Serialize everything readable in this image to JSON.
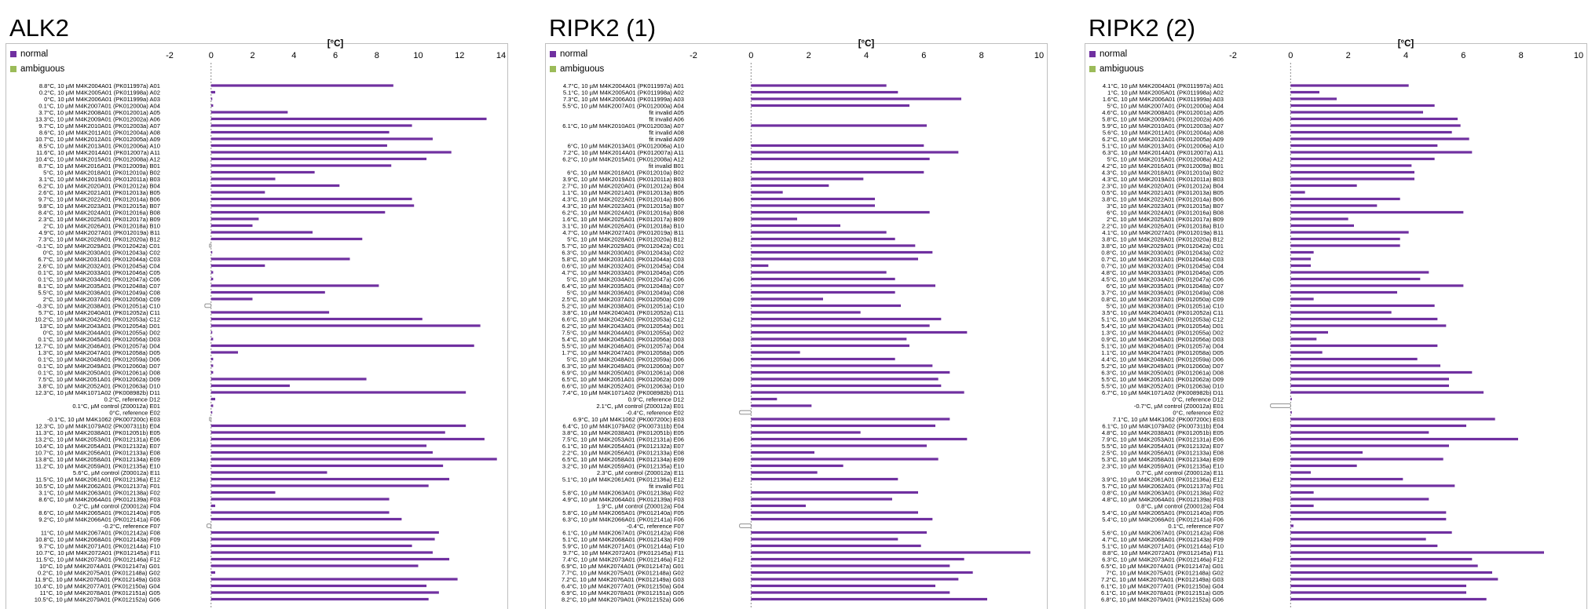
{
  "panels": [
    {
      "title": "ALK2"
    },
    {
      "title": "RIPK2 (1)"
    },
    {
      "title": "RIPK2 (2)"
    }
  ],
  "legend": [
    {
      "label": "normal",
      "color": "#7030a0"
    },
    {
      "label": "ambiguous",
      "color": "#9bbb59"
    }
  ],
  "chart_data": [
    {
      "type": "bar",
      "orientation": "horizontal",
      "xlabel": "[°C]",
      "xlim": [
        -2,
        14
      ],
      "ticks": [
        -2,
        0,
        2,
        4,
        6,
        8,
        10,
        12,
        14
      ],
      "categories": [
        "8.8°C, 10 µM M4K2004A01 (PK011997a) A01",
        "0.2°C, 10 µM M4K2005A01 (PK011998a) A02",
        "0°C, 10 µM M4K2006A01 (PK011999a) A03",
        "0.1°C, 10 µM M4K2007A01 (PK012000a) A04",
        "3.7°C, 10 µM M4K2008A01 (PK012001a) A05",
        "13.3°C, 10 µM M4K2009A01 (PK012002a) A06",
        "9.7°C, 10 µM M4K2010A01 (PK012003a) A07",
        "8.6°C, 10 µM M4K2011A01 (PK012004a) A08",
        "10.7°C, 10 µM M4K2012A01 (PK012005a) A09",
        "8.5°C, 10 µM M4K2013A01 (PK012006a) A10",
        "11.6°C, 10 µM M4K2014A01 (PK012007a) A11",
        "10.4°C, 10 µM M4K2015A01 (PK012008a) A12",
        "8.7°C, 10 µM M4K2016A01 (PK012009a) B01",
        "5°C, 10 µM M4K2018A01 (PK012010a) B02",
        "3.1°C, 10 µM M4K2019A01 (PK012011a) B03",
        "6.2°C, 10 µM M4K2020A01 (PK012012a) B04",
        "2.6°C, 10 µM M4K2021A01 (PK012013a) B05",
        "9.7°C, 10 µM M4K2022A01 (PK012014a) B06",
        "9.8°C, 10 µM M4K2023A01 (PK012015a) B07",
        "8.4°C, 10 µM M4K2024A01 (PK012016a) B08",
        "2.3°C, 10 µM M4K2025A01 (PK012017a) B09",
        "2°C, 10 µM M4K2026A01 (PK012018a) B10",
        "4.9°C, 10 µM M4K2027A01 (PK012019a) B11",
        "7.3°C, 10 µM M4K2028A01 (PK012020a) B12",
        "-0.1°C, 10 µM M4K2029A01 (PK012042a) C01",
        "0°C, 10 µM M4K2030A01 (PK012043a) C02",
        "6.7°C, 10 µM M4K2031A01 (PK012044a) C03",
        "2.6°C, 10 µM M4K2032A01 (PK012045a) C04",
        "0.1°C, 10 µM M4K2033A01 (PK012046a) C05",
        "0.1°C, 10 µM M4K2034A01 (PK012047a) C06",
        "8.1°C, 10 µM M4K2035A01 (PK012048a) C07",
        "5.5°C, 10 µM M4K2036A01 (PK012049a) C08",
        "2°C, 10 µM M4K2037A01 (PK012050a) C09",
        "-0.3°C, 10 µM M4K2038A01 (PK012051a) C10",
        "5.7°C, 10 µM M4K2040A01 (PK012052a) C11",
        "10.2°C, 10 µM M4K2042A01 (PK012053a) C12",
        "13°C, 10 µM M4K2043A01 (PK012054a) D01",
        "0°C, 10 µM M4K2044A01 (PK012055a) D02",
        "0.1°C, 10 µM M4K2045A01 (PK012056a) D03",
        "12.7°C, 10 µM M4K2046A01 (PK012057a) D04",
        "1.3°C, 10 µM M4K2047A01 (PK012058a) D05",
        "0.1°C, 10 µM M4K2048A01 (PK012059a) D06",
        "0.1°C, 10 µM M4K2049A01 (PK012060a) D07",
        "0.1°C, 10 µM M4K2050A01 (PK012061a) D08",
        "7.5°C, 10 µM M4K2051A01 (PK012062a) D09",
        "3.8°C, 10 µM M4K2052A01 (PK012063a) D10",
        "12.3°C, 10 µM M4K1071A02 (PK008982b) D11",
        "0.2°C, reference D12",
        "0.1°C, µM control (Z00012a) E01",
        "0°C, reference E02",
        "-0.1°C, 10 µM M4K1062 (PK007200c) E03",
        "12.3°C, 10 µM M4K1079A02 (PK007311b) E04",
        "11.3°C, 10 µM M4K2038A01 (PK012051b) E05",
        "13.2°C, 10 µM M4K2053A01 (PK012131a) E06",
        "10.4°C, 10 µM M4K2054A01 (PK012132a) E07",
        "10.7°C, 10 µM M4K2056A01 (PK012133a) E08",
        "13.8°C, 10 µM M4K2058A01 (PK012134a) E09",
        "11.2°C, 10 µM M4K2059A01 (PK012135a) E10",
        "5.6°C, µM control (Z00012a) E11",
        "11.5°C, 10 µM M4K2061A01 (PK012136a) E12",
        "10.5°C, 10 µM M4K2062A01 (PK012137a) F01",
        "3.1°C, 10 µM M4K2063A01 (PK012138a) F02",
        "8.6°C, 10 µM M4K2064A01 (PK012139a) F03",
        "0.2°C, µM control (Z00012a) F04",
        "8.6°C, 10 µM M4K2065A01 (PK012140a) F05",
        "9.2°C, 10 µM M4K2066A01 (PK012141a) F06",
        "-0.2°C, reference F07",
        "11°C, 10 µM M4K2067A01 (PK012142a) F08",
        "10.8°C, 10 µM M4K2068A01 (PK012143a) F09",
        "9.7°C, 10 µM M4K2071A01 (PK012144a) F10",
        "10.7°C, 10 µM M4K2072A01 (PK012145a) F11",
        "11.5°C, 10 µM M4K2073A01 (PK012146a) F12",
        "10°C, 10 µM M4K2074A01 (PK012147a) G01",
        "0.2°C, 10 µM M4K2075A01 (PK012148a) G02",
        "11.9°C, 10 µM M4K2076A01 (PK012149a) G03",
        "10.4°C, 10 µM M4K2077A01 (PK012150a) G04",
        "11°C, 10 µM M4K2078A01 (PK012151a) G05",
        "10.5°C, 10 µM M4K2079A01 (PK012152a) G06"
      ],
      "values": [
        8.8,
        0.2,
        0,
        0.1,
        3.7,
        13.3,
        9.7,
        8.6,
        10.7,
        8.5,
        11.6,
        10.4,
        8.7,
        5,
        3.1,
        6.2,
        2.6,
        9.7,
        9.8,
        8.4,
        2.3,
        2,
        4.9,
        7.3,
        -0.1,
        0,
        6.7,
        2.6,
        0.1,
        0.1,
        8.1,
        5.5,
        2,
        -0.3,
        5.7,
        10.2,
        13,
        0,
        0.1,
        12.7,
        1.3,
        0.1,
        0.1,
        0.1,
        7.5,
        3.8,
        12.3,
        0.2,
        0.1,
        0,
        -0.1,
        12.3,
        11.3,
        13.2,
        10.4,
        10.7,
        13.8,
        11.2,
        5.6,
        11.5,
        10.5,
        3.1,
        8.6,
        0.2,
        8.6,
        9.2,
        -0.2,
        11,
        10.8,
        9.7,
        10.7,
        11.5,
        10,
        0.2,
        11.9,
        10.4,
        11,
        10.5
      ],
      "grid": false
    },
    {
      "type": "bar",
      "orientation": "horizontal",
      "xlabel": "[°C]",
      "xlim": [
        -2,
        10
      ],
      "ticks": [
        -2,
        0,
        2,
        4,
        6,
        8,
        10
      ],
      "categories": [
        "4.7°C, 10 µM M4K2004A01 (PK011997a) A01",
        "5.1°C, 10 µM M4K2005A01 (PK011998a) A02",
        "7.3°C, 10 µM M4K2006A01 (PK011999a) A03",
        "5.5°C, 10 µM M4K2007A01 (PK012000a) A04",
        "fit invalid A05",
        "fit invalid A06",
        "6.1°C, 10 µM M4K2010A01 (PK012003a) A07",
        "fit invalid A08",
        "fit invalid A09",
        "6°C, 10 µM M4K2013A01 (PK012006a) A10",
        "7.2°C, 10 µM M4K2014A01 (PK012007a) A11",
        "6.2°C, 10 µM M4K2015A01 (PK012008a) A12",
        "fit invalid B01",
        "6°C, 10 µM M4K2018A01 (PK012010a) B02",
        "3.9°C, 10 µM M4K2019A01 (PK012011a) B03",
        "2.7°C, 10 µM M4K2020A01 (PK012012a) B04",
        "1.1°C, 10 µM M4K2021A01 (PK012013a) B05",
        "4.3°C, 10 µM M4K2022A01 (PK012014a) B06",
        "4.3°C, 10 µM M4K2023A01 (PK012015a) B07",
        "6.2°C, 10 µM M4K2024A01 (PK012016a) B08",
        "1.6°C, 10 µM M4K2025A01 (PK012017a) B09",
        "3.1°C, 10 µM M4K2026A01 (PK012018a) B10",
        "4.7°C, 10 µM M4K2027A01 (PK012019a) B11",
        "5°C, 10 µM M4K2028A01 (PK012020a) B12",
        "5.7°C, 10 µM M4K2029A01 (PK012042a) C01",
        "6.3°C, 10 µM M4K2030A01 (PK012043a) C02",
        "5.8°C, 10 µM M4K2031A01 (PK012044a) C03",
        "0.6°C, 10 µM M4K2032A01 (PK012045a) C04",
        "4.7°C, 10 µM M4K2033A01 (PK012046a) C05",
        "5°C, 10 µM M4K2034A01 (PK012047a) C06",
        "6.4°C, 10 µM M4K2035A01 (PK012048a) C07",
        "5°C, 10 µM M4K2036A01 (PK012049a) C08",
        "2.5°C, 10 µM M4K2037A01 (PK012050a) C09",
        "5.2°C, 10 µM M4K2038A01 (PK012051a) C10",
        "3.8°C, 10 µM M4K2040A01 (PK012052a) C11",
        "6.6°C, 10 µM M4K2042A01 (PK012053a) C12",
        "6.2°C, 10 µM M4K2043A01 (PK012054a) D01",
        "7.5°C, 10 µM M4K2044A01 (PK012055a) D02",
        "5.4°C, 10 µM M4K2045A01 (PK012056a) D03",
        "5.5°C, 10 µM M4K2046A01 (PK012057a) D04",
        "1.7°C, 10 µM M4K2047A01 (PK012058a) D05",
        "5°C, 10 µM M4K2048A01 (PK012059a) D06",
        "6.3°C, 10 µM M4K2049A01 (PK012060a) D07",
        "6.9°C, 10 µM M4K2050A01 (PK012061a) D08",
        "6.5°C, 10 µM M4K2051A01 (PK012062a) D09",
        "6.6°C, 10 µM M4K2052A01 (PK012063a) D10",
        "7.4°C, 10 µM M4K1071A02 (PK008982b) D11",
        "0.9°C, reference D12",
        "2.1°C, µM control (Z00012a) E01",
        "-0.4°C, reference E02",
        "6.9°C, 10 µM M4K1062 (PK007200c) E03",
        "6.4°C, 10 µM M4K1079A02 (PK007311b) E04",
        "3.8°C, 10 µM M4K2038A01 (PK012051b) E05",
        "7.5°C, 10 µM M4K2053A01 (PK012131a) E06",
        "6.1°C, 10 µM M4K2054A01 (PK012132a) E07",
        "2.2°C, 10 µM M4K2056A01 (PK012133a) E08",
        "6.5°C, 10 µM M4K2058A01 (PK012134a) E09",
        "3.2°C, 10 µM M4K2059A01 (PK012135a) E10",
        "2.3°C, µM control (Z00012a) E11",
        "5.1°C, 10 µM M4K2061A01 (PK012136a) E12",
        "fit invalid F01",
        "5.8°C, 10 µM M4K2063A01 (PK012138a) F02",
        "4.9°C, 10 µM M4K2064A01 (PK012139a) F03",
        "1.9°C, µM control (Z00012a) F04",
        "5.8°C, 10 µM M4K2065A01 (PK012140a) F05",
        "6.3°C, 10 µM M4K2066A01 (PK012141a) F06",
        "-0.4°C, reference F07",
        "6.1°C, 10 µM M4K2067A01 (PK012142a) F08",
        "5.1°C, 10 µM M4K2068A01 (PK012143a) F09",
        "5.9°C, 10 µM M4K2071A01 (PK012144a) F10",
        "9.7°C, 10 µM M4K2072A01 (PK012145a) F11",
        "7.4°C, 10 µM M4K2073A01 (PK012146a) F12",
        "6.9°C, 10 µM M4K2074A01 (PK012147a) G01",
        "7.7°C, 10 µM M4K2075A01 (PK012148a) G02",
        "7.2°C, 10 µM M4K2076A01 (PK012149a) G03",
        "6.4°C, 10 µM M4K2077A01 (PK012150a) G04",
        "6.9°C, 10 µM M4K2078A01 (PK012151a) G05",
        "8.2°C, 10 µM M4K2079A01 (PK012152a) G06"
      ],
      "values": [
        4.7,
        5.1,
        7.3,
        5.5,
        null,
        null,
        6.1,
        null,
        null,
        6,
        7.2,
        6.2,
        null,
        6,
        3.9,
        2.7,
        1.1,
        4.3,
        4.3,
        6.2,
        1.6,
        3.1,
        4.7,
        5,
        5.7,
        6.3,
        5.8,
        0.6,
        4.7,
        5,
        6.4,
        5,
        2.5,
        5.2,
        3.8,
        6.6,
        6.2,
        7.5,
        5.4,
        5.5,
        1.7,
        5,
        6.3,
        6.9,
        6.5,
        6.6,
        7.4,
        0.9,
        2.1,
        -0.4,
        6.9,
        6.4,
        3.8,
        7.5,
        6.1,
        2.2,
        6.5,
        3.2,
        2.3,
        5.1,
        null,
        5.8,
        4.9,
        1.9,
        5.8,
        6.3,
        -0.4,
        6.1,
        5.1,
        5.9,
        9.7,
        7.4,
        6.9,
        7.7,
        7.2,
        6.4,
        6.9,
        8.2
      ],
      "grid": false
    },
    {
      "type": "bar",
      "orientation": "horizontal",
      "xlabel": "[°C]",
      "xlim": [
        -2,
        10
      ],
      "ticks": [
        -2,
        0,
        2,
        4,
        6,
        8,
        10
      ],
      "categories": [
        "4.1°C, 10 µM M4K2004A01 (PK011997a) A01",
        "1°C, 10 µM M4K2005A01 (PK011998a) A02",
        "1.6°C, 10 µM M4K2006A01 (PK011999a) A03",
        "5°C, 10 µM M4K2007A01 (PK012000a) A04",
        "4.6°C, 10 µM M4K2008A01 (PK012001a) A05",
        "5.8°C, 10 µM M4K2009A01 (PK012002a) A06",
        "5.9°C, 10 µM M4K2010A01 (PK012003a) A07",
        "5.6°C, 10 µM M4K2011A01 (PK012004a) A08",
        "6.2°C, 10 µM M4K2012A01 (PK012005a) A09",
        "5.1°C, 10 µM M4K2013A01 (PK012006a) A10",
        "6.3°C, 10 µM M4K2014A01 (PK012007a) A11",
        "5°C, 10 µM M4K2015A01 (PK012008a) A12",
        "4.2°C, 10 µM M4K2016A01 (PK012009a) B01",
        "4.3°C, 10 µM M4K2018A01 (PK012010a) B02",
        "4.3°C, 10 µM M4K2019A01 (PK012011a) B03",
        "2.3°C, 10 µM M4K2020A01 (PK012012a) B04",
        "0.5°C, 10 µM M4K2021A01 (PK012013a) B05",
        "3.8°C, 10 µM M4K2022A01 (PK012014a) B06",
        "3°C, 10 µM M4K2023A01 (PK012015a) B07",
        "6°C, 10 µM M4K2024A01 (PK012016a) B08",
        "2°C, 10 µM M4K2025A01 (PK012017a) B09",
        "2.2°C, 10 µM M4K2026A01 (PK012018a) B10",
        "4.1°C, 10 µM M4K2027A01 (PK012019a) B11",
        "3.8°C, 10 µM M4K2028A01 (PK012020a) B12",
        "3.8°C, 10 µM M4K2029A01 (PK012042a) C01",
        "0.8°C, 10 µM M4K2030A01 (PK012043a) C02",
        "0.7°C, 10 µM M4K2031A01 (PK012044a) C03",
        "0.7°C, 10 µM M4K2032A01 (PK012045a) C04",
        "4.8°C, 10 µM M4K2033A01 (PK012046a) C05",
        "4.5°C, 10 µM M4K2034A01 (PK012047a) C06",
        "6°C, 10 µM M4K2035A01 (PK012048a) C07",
        "3.7°C, 10 µM M4K2036A01 (PK012049a) C08",
        "0.8°C, 10 µM M4K2037A01 (PK012050a) C09",
        "5°C, 10 µM M4K2038A01 (PK012051a) C10",
        "3.5°C, 10 µM M4K2040A01 (PK012052a) C11",
        "5.1°C, 10 µM M4K2042A01 (PK012053a) C12",
        "5.4°C, 10 µM M4K2043A01 (PK012054a) D01",
        "1.3°C, 10 µM M4K2044A01 (PK012055a) D02",
        "0.9°C, 10 µM M4K2045A01 (PK012056a) D03",
        "5.1°C, 10 µM M4K2046A01 (PK012057a) D04",
        "1.1°C, 10 µM M4K2047A01 (PK012058a) D05",
        "4.4°C, 10 µM M4K2048A01 (PK012059a) D06",
        "5.2°C, 10 µM M4K2049A01 (PK012060a) D07",
        "6.3°C, 10 µM M4K2050A01 (PK012061a) D08",
        "5.5°C, 10 µM M4K2051A01 (PK012062a) D09",
        "5.5°C, 10 µM M4K2052A01 (PK012063a) D10",
        "6.7°C, 10 µM M4K1071A02 (PK008982b) D11",
        "0°C, reference D12",
        "-0.7°C, µM control (Z00012a) E01",
        "0°C, reference E02",
        "7.1°C, 10 µM M4K1062 (PK007200c) E03",
        "6.1°C, 10 µM M4K1079A02 (PK007311b) E04",
        "4.8°C, 10 µM M4K2038A01 (PK012051b) E05",
        "7.9°C, 10 µM M4K2053A01 (PK012131a) E06",
        "5.5°C, 10 µM M4K2054A01 (PK012132a) E07",
        "2.5°C, 10 µM M4K2056A01 (PK012133a) E08",
        "5.3°C, 10 µM M4K2058A01 (PK012134a) E09",
        "2.3°C, 10 µM M4K2059A01 (PK012135a) E10",
        "0.7°C, µM control (Z00012a) E11",
        "3.9°C, 10 µM M4K2061A01 (PK012136a) E12",
        "5.7°C, 10 µM M4K2062A01 (PK012137a) F01",
        "0.8°C, 10 µM M4K2063A01 (PK012138a) F02",
        "4.8°C, 10 µM M4K2064A01 (PK012139a) F03",
        "0.8°C, µM control (Z00012a) F04",
        "5.4°C, 10 µM M4K2065A01 (PK012140a) F05",
        "5.4°C, 10 µM M4K2066A01 (PK012141a) F06",
        "0.1°C, reference F07",
        "5.6°C, 10 µM M4K2067A01 (PK012142a) F08",
        "4.7°C, 10 µM M4K2068A01 (PK012143a) F09",
        "5.1°C, 10 µM M4K2071A01 (PK012144a) F10",
        "8.8°C, 10 µM M4K2072A01 (PK012145a) F11",
        "6.3°C, 10 µM M4K2073A01 (PK012146a) F12",
        "6.5°C, 10 µM M4K2074A01 (PK012147a) G01",
        "7°C, 10 µM M4K2075A01 (PK012148a) G02",
        "7.2°C, 10 µM M4K2076A01 (PK012149a) G03",
        "6.1°C, 10 µM M4K2077A01 (PK012150a) G04",
        "6.1°C, 10 µM M4K2078A01 (PK012151a) G05",
        "6.8°C, 10 µM M4K2079A01 (PK012152a) G06"
      ],
      "values": [
        4.1,
        1,
        1.6,
        5,
        4.6,
        5.8,
        5.9,
        5.6,
        6.2,
        5.1,
        6.3,
        5,
        4.2,
        4.3,
        4.3,
        2.3,
        0.5,
        3.8,
        3,
        6,
        2,
        2.2,
        4.1,
        3.8,
        3.8,
        0.8,
        0.7,
        0.7,
        4.8,
        4.5,
        6,
        3.7,
        0.8,
        5,
        3.5,
        5.1,
        5.4,
        1.3,
        0.9,
        5.1,
        1.1,
        4.4,
        5.2,
        6.3,
        5.5,
        5.5,
        6.7,
        0,
        -0.7,
        0,
        7.1,
        6.1,
        4.8,
        7.9,
        5.5,
        2.5,
        5.3,
        2.3,
        0.7,
        3.9,
        5.7,
        0.8,
        4.8,
        0.8,
        5.4,
        5.4,
        0.1,
        5.6,
        4.7,
        5.1,
        8.8,
        6.3,
        6.5,
        7,
        7.2,
        6.1,
        6.1,
        6.8
      ],
      "grid": false
    }
  ]
}
